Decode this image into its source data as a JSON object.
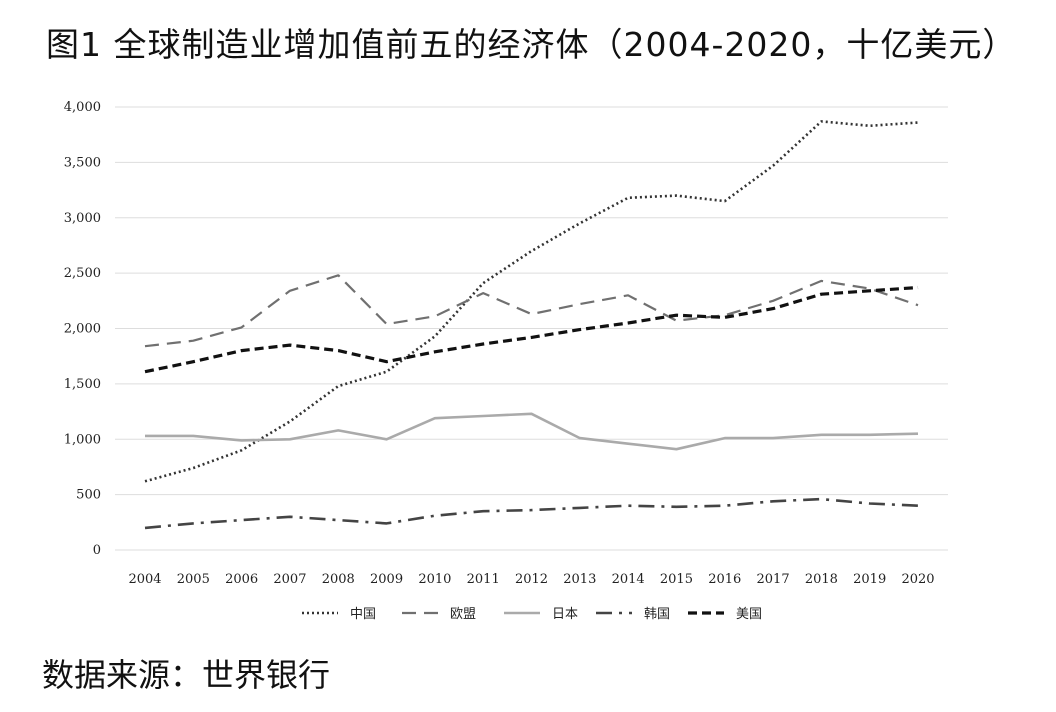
{
  "title": "图1 全球制造业增加值前五的经济体（2004-2020，十亿美元）",
  "source": "数据来源：世界银行",
  "chart_data": {
    "type": "line",
    "title": "图1 全球制造业增加值前五的经济体（2004-2020，十亿美元）",
    "xlabel": "",
    "ylabel": "",
    "ylim": [
      0,
      4000
    ],
    "yticks": [
      0,
      500,
      1000,
      1500,
      2000,
      2500,
      3000,
      3500,
      4000
    ],
    "ytick_labels": [
      "0",
      "500",
      "1,000",
      "1,500",
      "2,000",
      "2,500",
      "3,000",
      "3,500",
      "4,000"
    ],
    "grid": true,
    "legend_position": "bottom",
    "categories": [
      "2004",
      "2005",
      "2006",
      "2007",
      "2008",
      "2009",
      "2010",
      "2011",
      "2012",
      "2013",
      "2014",
      "2015",
      "2016",
      "2017",
      "2018",
      "2019",
      "2020"
    ],
    "series": [
      {
        "name": "中国",
        "style": "dotted",
        "color": "#333333",
        "values": [
          620,
          740,
          900,
          1160,
          1480,
          1610,
          1930,
          2410,
          2700,
          2950,
          3180,
          3200,
          3150,
          3470,
          3870,
          3830,
          3860
        ]
      },
      {
        "name": "欧盟",
        "style": "dashed",
        "color": "#707070",
        "values": [
          1840,
          1890,
          2010,
          2340,
          2480,
          2040,
          2110,
          2320,
          2130,
          2220,
          2300,
          2070,
          2120,
          2250,
          2430,
          2360,
          2210
        ]
      },
      {
        "name": "日本",
        "style": "solid",
        "color": "#aaaaaa",
        "values": [
          1030,
          1030,
          990,
          1000,
          1080,
          1000,
          1190,
          1210,
          1230,
          1010,
          960,
          910,
          1010,
          1010,
          1040,
          1040,
          1050
        ]
      },
      {
        "name": "韩国",
        "style": "dashdot",
        "color": "#444444",
        "values": [
          200,
          240,
          270,
          300,
          270,
          240,
          310,
          350,
          360,
          380,
          400,
          390,
          400,
          440,
          460,
          420,
          400
        ]
      },
      {
        "name": "美国",
        "style": "bolddash",
        "color": "#111111",
        "values": [
          1610,
          1700,
          1800,
          1850,
          1800,
          1700,
          1790,
          1860,
          1920,
          1990,
          2050,
          2120,
          2100,
          2180,
          2310,
          2340,
          2370
        ]
      }
    ]
  }
}
